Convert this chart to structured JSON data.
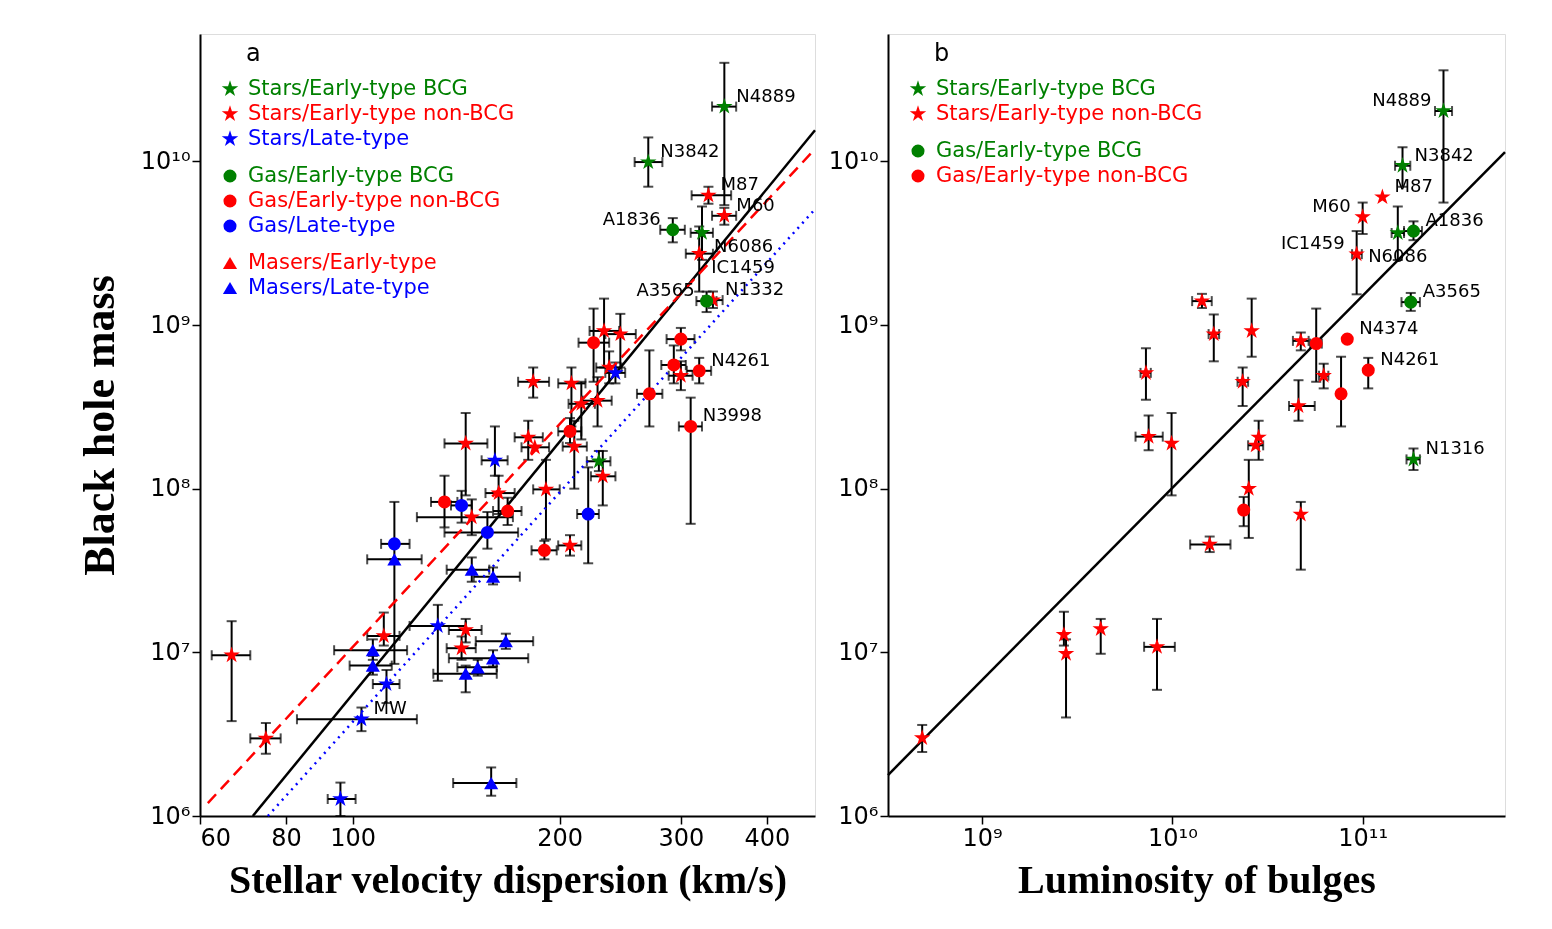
{
  "chart_data": [
    {
      "type": "scatter",
      "xlabel": "Stellar velocity dispersion (km/s)",
      "ylabel": "Black hole mass",
      "log": "xy",
      "grid": false,
      "legend": "top left",
      "xlim": [
        60,
        470
      ],
      "ylim": [
        1000000,
        60000000000
      ],
      "xticks": [
        60,
        80,
        100,
        200,
        300,
        400
      ],
      "yticks": [
        {
          "value": 1000000,
          "label": "10⁶"
        },
        {
          "value": 10000000,
          "label": "10⁷"
        },
        {
          "value": 100000000,
          "label": "10⁸"
        },
        {
          "value": 1000000000,
          "label": "10⁹"
        },
        {
          "value": 10000000000,
          "label": "10¹⁰"
        }
      ],
      "annotations": [
        "a",
        {
          "text": "N4889",
          "x": 347,
          "y": 21600000000.0
        },
        {
          "text": "N3842",
          "x": 269,
          "y": 9900000000.0
        },
        {
          "text": "M87",
          "x": 329,
          "y": 6200000000.0
        },
        {
          "text": "M60",
          "x": 347,
          "y": 4650000000.0
        },
        {
          "text": "A1836",
          "x": 292,
          "y": 3820000000.0
        },
        {
          "text": "N6086",
          "x": 322,
          "y": 3660000000.0
        },
        {
          "text": "IC1459",
          "x": 319,
          "y": 2730000000.0
        },
        {
          "text": "N1332",
          "x": 334,
          "y": 1420000000.0
        },
        {
          "text": "A3565",
          "x": 327,
          "y": 1400000000.0
        },
        {
          "text": "N4261",
          "x": 319,
          "y": 525000000.0
        },
        {
          "text": "N3998",
          "x": 310,
          "y": 240000000.0
        },
        {
          "text": "MW",
          "x": 103,
          "y": 3900000.0
        }
      ],
      "series": [
        {
          "name": "Stars/Early-type BCG",
          "color": "#008000",
          "marker": "star",
          "x": [
            347,
            269,
            322,
            228
          ],
          "values": [
            21600000000.0,
            9900000000.0,
            3660000000.0,
            147000000.0
          ],
          "errors": [
            [
              5400000000.0,
              40000000000.0
            ],
            [
              7000000000.0,
              14000000000.0
            ],
            [
              2500000000.0,
              5300000000.0
            ],
            [
              128000000.0,
              170000000.0
            ]
          ],
          "xerrors": [
            [
              333,
              361
            ],
            [
              257,
              282
            ],
            [
              310,
              334
            ],
            [
              219,
              237
            ]
          ]
        },
        {
          "name": "Stars/Early-type non-BCG",
          "color": "#ff0000",
          "marker": "star",
          "x": [
            329,
            347,
            319,
            334,
            232,
            245,
            236,
            183,
            208,
            215,
            227,
            300,
            146,
            180,
            184,
            210,
            231,
            163,
            191,
            149,
            207,
            66.7,
            74.8,
            111,
            146,
            144
          ],
          "values": [
            6200000000.0,
            4650000000.0,
            2730000000.0,
            1420000000.0,
            920000000.0,
            880000000.0,
            550000000.0,
            450000000.0,
            440000000.0,
            330000000.0,
            345000000.0,
            490000000.0,
            189000000.0,
            206000000.0,
            179000000.0,
            181000000.0,
            119000000.0,
            94000000.0,
            99000000.0,
            67000000.0,
            45000000.0,
            9600000.0,
            2980000.0,
            12600000.0,
            13700000.0,
            10600000.0
          ],
          "errors": [
            [
              5500000000.0,
              7000000000.0
            ],
            [
              4100000000.0,
              5200000000.0
            ],
            [
              1600000000.0,
              4000000000.0
            ],
            [
              1270000000.0,
              1600000000.0
            ],
            [
              550000000.0,
              1450000000.0
            ],
            [
              550000000.0,
              1170000000.0
            ],
            [
              440000000.0,
              690000000.0
            ],
            [
              360000000.0,
              550000000.0
            ],
            [
              240000000.0,
              550000000.0
            ],
            [
              200000000.0,
              450000000.0
            ],
            [
              240000000.0,
              480000000.0
            ],
            [
              400000000.0,
              600000000.0
            ],
            [
              91000000.0,
              290000000.0
            ],
            [
              150000000.0,
              260000000.0
            ],
            null,
            [
              100000000.0,
              260000000.0
            ],
            [
              79000000.0,
              170000000.0
            ],
            [
              70000000.0,
              120000000.0
            ],
            [
              49000000.0,
              150000000.0
            ],
            [
              52000000.0,
              86000000.0
            ],
            [
              39000000.0,
              52000000.0
            ],
            [
              3800000.0,
              15500000.0
            ],
            [
              2400000.0,
              3700000.0
            ],
            [
              11000000.0,
              17500000.0
            ],
            [
              11500000.0,
              16000000.0
            ],
            [
              9000000.0,
              12500000.0
            ]
          ],
          "xerrors": [
            [
              311,
              355
            ],
            [
              333,
              361
            ],
            [
              305,
              334
            ],
            [
              323,
              345
            ],
            [
              221,
              244
            ],
            [
              233,
              258
            ],
            [
              226,
              246
            ],
            [
              174,
              193
            ],
            [
              199,
              218
            ],
            [
              206,
              225
            ],
            [
              216,
              238
            ],
            [
              288,
              312
            ],
            [
              136,
              157
            ],
            [
              172,
              189
            ],
            [
              176,
              193
            ],
            [
              202,
              219
            ],
            [
              222,
              241
            ],
            [
              156,
              172
            ],
            [
              183,
              200
            ],
            [
              124,
              171
            ],
            [
              199,
              215
            ],
            [
              62.4,
              71.0
            ],
            [
              71.0,
              78.6
            ],
            [
              105,
              117
            ],
            [
              138,
              154
            ],
            [
              137,
              151
            ]
          ]
        },
        {
          "name": "Stars/Late-type",
          "color": "#0000ff",
          "marker": "star",
          "x": [
            161,
            133,
            112,
            103,
            96,
            241
          ],
          "values": [
            149000000.0,
            14500000.0,
            6400000.0,
            3900000.0,
            1270000.0,
            510000000.0
          ],
          "errors": [
            [
              120000000.0,
              240000000.0
            ],
            [
              6700000.0,
              19500000.0
            ],
            [
              4900000.0,
              7800000.0
            ],
            [
              3300000.0,
              4600000.0
            ],
            [
              1000000.0,
              1600000.0
            ],
            [
              440000000.0,
              590000000.0
            ]
          ],
          "xerrors": [
            [
              154,
              168
            ],
            [
              121,
              146
            ],
            [
              107,
              117
            ],
            [
              83,
              124
            ],
            [
              92,
              101
            ],
            [
              233,
              249
            ]
          ]
        },
        {
          "name": "Gas/Early-type BCG",
          "color": "#008000",
          "marker": "circle",
          "x": [
            292,
            327
          ],
          "values": [
            3820000000.0,
            1400000000.0
          ],
          "errors": [
            [
              3200000000.0,
              4500000000.0
            ],
            [
              1200000000.0,
              1600000000.0
            ]
          ],
          "xerrors": [
            [
              280,
              304
            ],
            [
              316,
              338
            ]
          ]
        },
        {
          "name": "Gas/Early-type non-BCG",
          "color": "#ff0000",
          "marker": "circle",
          "x": [
            224,
            300,
            293,
            319,
            270,
            310,
            136,
            168,
            207,
            190
          ],
          "values": [
            780000000.0,
            820000000.0,
            570000000.0,
            525000000.0,
            380000000.0,
            240000000.0,
            83000000.0,
            73000000.0,
            224000000.0,
            42000000.0
          ],
          "errors": [
            [
              450000000.0,
              1260000000.0
            ],
            [
              700000000.0,
              960000000.0
            ],
            [
              440000000.0,
              750000000.0
            ],
            [
              440000000.0,
              630000000.0
            ],
            [
              240000000.0,
              700000000.0
            ],
            [
              61000000.0,
              360000000.0
            ],
            [
              58000000.0,
              120000000.0
            ],
            [
              60000000.0,
              88000000.0
            ],
            [
              190000000.0,
              270000000.0
            ],
            [
              37000000.0,
              48000000.0
            ]
          ],
          "xerrors": [
            [
              213,
              236
            ],
            [
              286,
              314
            ],
            [
              281,
              305
            ],
            [
              306,
              332
            ],
            [
              259,
              282
            ],
            [
              298,
              322
            ],
            [
              130,
              142
            ],
            [
              160,
              176
            ],
            [
              199,
              215
            ],
            [
              182,
              198
            ]
          ]
        },
        {
          "name": "Gas/Late-type",
          "color": "#0000ff",
          "marker": "circle",
          "x": [
            144,
            157,
            115,
            220
          ],
          "values": [
            79000000.0,
            54000000.0,
            46000000.0,
            70000000.0
          ],
          "errors": [
            [
              62000000.0,
              97000000.0
            ],
            [
              43000000.0,
              72000000.0
            ],
            [
              37000000.0,
              83000000.0
            ],
            [
              35000000.0,
              135000000.0
            ]
          ],
          "xerrors": [
            [
              139,
              149
            ],
            [
              136,
              174
            ],
            [
              110,
              121
            ],
            [
              212,
              228
            ]
          ]
        },
        {
          "name": "Masers/Early-type",
          "color": "#ff0000",
          "marker": "triangle"
        },
        {
          "name": "Masers/Late-type",
          "color": "#0000ff",
          "marker": "triangle",
          "x": [
            115,
            149,
            160,
            107,
            107,
            167,
            160,
            152,
            146,
            159
          ],
          "values": [
            37000000.0,
            32000000.0,
            29000000.0,
            10300000.0,
            8300000.0,
            11700000.0,
            9200000.0,
            8100000.0,
            7400000.0,
            1590000.0
          ],
          "errors": [
            [
              8500000.0,
              37000000.0
            ],
            [
              27000000.0,
              38000000.0
            ],
            [
              26000000.0,
              33000000.0
            ],
            [
              9000000.0,
              12000000.0
            ],
            [
              7300000.0,
              9500000.0
            ],
            [
              10500000.0,
              13000000.0
            ],
            [
              8200000.0,
              10300000.0
            ],
            [
              7200000.0,
              9000000.0
            ],
            [
              5700000.0,
              8300000.0
            ],
            [
              1330000.0,
              1980000.0
            ]
          ],
          "xerrors": [
            [
              105,
              126
            ],
            [
              137,
              158
            ],
            [
              150,
              175
            ],
            [
              94,
              120
            ],
            [
              99,
              114
            ],
            [
              151,
              183
            ],
            [
              138,
              180
            ],
            [
              142,
              162
            ],
            [
              131,
              162
            ],
            [
              140,
              173
            ]
          ]
        },
        {
          "type": "line",
          "color": "#000000",
          "line_style": "solid",
          "x": [
            71.6,
            470
          ],
          "values": [
            1000000,
            15500000000.0
          ]
        },
        {
          "type": "line",
          "color": "#ff0000",
          "line_style": "dashed",
          "x": [
            61.6,
            470
          ],
          "values": [
            1200000,
            11900000000.0
          ]
        },
        {
          "type": "line",
          "color": "#0000ff",
          "line_style": "dotted",
          "x": [
            75.3,
            470
          ],
          "values": [
            1000000,
            5100000000.0
          ]
        }
      ]
    },
    {
      "type": "scatter",
      "xlabel": "Luminosity of bulges",
      "log": "xy",
      "grid": false,
      "legend": "top left",
      "xlim": [
        320000000,
        560000000000
      ],
      "ylim": [
        1000000,
        60000000000
      ],
      "xticks": [
        {
          "value": 1000000000,
          "label": "10⁹"
        },
        {
          "value": 10000000000,
          "label": "10¹⁰"
        },
        {
          "value": 100000000000,
          "label": "10¹¹"
        }
      ],
      "yticks": [
        {
          "value": 1000000,
          "label": "10⁶"
        },
        {
          "value": 10000000,
          "label": "10⁷"
        },
        {
          "value": 100000000,
          "label": "10⁸"
        },
        {
          "value": 1000000000,
          "label": "10⁹"
        },
        {
          "value": 10000000000,
          "label": "10¹⁰"
        }
      ],
      "annotations": [
        "b",
        {
          "text": "N4889",
          "x": 266000000000.0,
          "y": 20300000000.0
        },
        {
          "text": "N3842",
          "x": 162000000000.0,
          "y": 9400000000.0
        },
        {
          "text": "M87",
          "x": 127000000000.0,
          "y": 6050000000.0
        },
        {
          "text": "M60",
          "x": 100000000000.0,
          "y": 4570000000.0
        },
        {
          "text": "A1836",
          "x": 185000000000.0,
          "y": 3750000000.0
        },
        {
          "text": "N6086",
          "x": 153000000000.0,
          "y": 3650000000.0
        },
        {
          "text": "IC1459",
          "x": 93000000000.0,
          "y": 2710000000.0
        },
        {
          "text": "A3565",
          "x": 179000000000.0,
          "y": 1380000000.0
        },
        {
          "text": "N4374",
          "x": 83000000000.0,
          "y": 820000000.0
        },
        {
          "text": "N4261",
          "x": 107000000000.0,
          "y": 530000000.0
        },
        {
          "text": "N1316",
          "x": 185000000000.0,
          "y": 151000000.0
        }
      ],
      "series": [
        {
          "name": "Stars/Early-type BCG",
          "color": "#008000",
          "marker": "star",
          "x": [
            266000000000.0,
            162000000000.0,
            153000000000.0,
            185000000000.0
          ],
          "values": [
            20300000000.0,
            9400000000.0,
            3650000000.0,
            151000000.0
          ],
          "errors": [
            [
              5600000000.0,
              36000000000.0
            ],
            [
              7000000000.0,
              12200000000.0
            ],
            [
              2500000000.0,
              5300000000.0
            ],
            [
              130000000.0,
              176000000.0
            ]
          ],
          "xerrors": [
            [
              240000000000.0,
              295000000000.0
            ],
            [
              148000000000.0,
              178000000000.0
            ],
            [
              142000000000.0,
              165000000000.0
            ],
            [
              170000000000.0,
              200000000000.0
            ]
          ]
        },
        {
          "name": "Stars/Early-type non-BCG",
          "color": "#ff0000",
          "marker": "star",
          "x": [
            127000000000.0,
            100000000000.0,
            93000000000.0,
            14300000000.0,
            16500000000.0,
            26100000000.0,
            47300000000.0,
            7260000000.0,
            23400000000.0,
            62400000000.0,
            46000000000.0,
            7500000000.0,
            9900000000.0,
            28400000000.0,
            27400000000.0,
            25200000000.0,
            47300000000.0,
            15700000000.0,
            2690000000.0,
            2760000000.0,
            4200000000.0,
            8300000000.0,
            484000000.0
          ],
          "values": [
            6050000000.0,
            4570000000.0,
            2710000000.0,
            1400000000.0,
            880000000.0,
            920000000.0,
            800000000.0,
            510000000.0,
            450000000.0,
            490000000.0,
            320000000.0,
            208000000.0,
            189000000.0,
            206000000.0,
            184000000.0,
            100000000.0,
            69500000.0,
            45600000.0,
            12800000.0,
            9800000.0,
            13900000.0,
            10800000.0,
            3000000.0
          ],
          "errors": [
            null,
            [
              3600000000.0,
              5600000000.0
            ],
            [
              1540000000.0,
              3750000000.0
            ],
            [
              1270000000.0,
              1550000000.0
            ],
            [
              600000000.0,
              1160000000.0
            ],
            [
              640000000.0,
              1450000000.0
            ],
            [
              700000000.0,
              900000000.0
            ],
            [
              350000000.0,
              720000000.0
            ],
            [
              320000000.0,
              550000000.0
            ],
            [
              410000000.0,
              580000000.0
            ],
            [
              260000000.0,
              460000000.0
            ],
            [
              172000000.0,
              280000000.0
            ],
            [
              91000000.0,
              290000000.0
            ],
            [
              150000000.0,
              260000000.0
            ],
            null,
            [
              50000000.0,
              150000000.0
            ],
            [
              32000000.0,
              83000000.0
            ],
            [
              41000000.0,
              51000000.0
            ],
            [
              11000000.0,
              17700000.0
            ],
            [
              4000000.0,
              12000000.0
            ],
            [
              9800000.0,
              16000000.0
            ],
            [
              5900000.0,
              16000000.0
            ],
            [
              2460000.0,
              3600000.0
            ]
          ],
          "xerrors": [
            null,
            null,
            [
              88000000000.0,
              99000000000.0
            ],
            [
              12700000000.0,
              16100000000.0
            ],
            [
              15500000000.0,
              17600000000.0
            ],
            null,
            [
              43000000000.0,
              52000000000.0
            ],
            [
              6800000000.0,
              7700000000.0
            ],
            [
              22000000000.0,
              25000000000.0
            ],
            [
              59000000000.0,
              66000000000.0
            ],
            [
              41000000000.0,
              56000000000.0
            ],
            [
              6400000000.0,
              8900000000.0
            ],
            null,
            null,
            [
              25000000000.0,
              30000000000.0
            ],
            null,
            null,
            [
              12400000000.0,
              20200000000.0
            ],
            null,
            null,
            null,
            [
              7100000000.0,
              10300000000.0
            ],
            null
          ]
        },
        {
          "name": "Gas/Early-type BCG",
          "color": "#008000",
          "marker": "circle",
          "x": [
            185000000000.0,
            179000000000.0
          ],
          "values": [
            3750000000.0,
            1380000000.0
          ],
          "errors": [
            [
              3300000000.0,
              4300000000.0
            ],
            [
              1220000000.0,
              1570000000.0
            ]
          ],
          "xerrors": [
            [
              165000000000.0,
              205000000000.0
            ],
            [
              160000000000.0,
              200000000000.0
            ]
          ]
        },
        {
          "name": "Gas/Early-type non-BCG",
          "color": "#ff0000",
          "marker": "circle",
          "x": [
            83000000000.0,
            107000000000.0,
            57000000000.0,
            77000000000.0,
            23700000000.0
          ],
          "values": [
            820000000.0,
            530000000.0,
            770000000.0,
            380000000.0,
            74000000.0
          ],
          "errors": [
            null,
            [
              410000000.0,
              630000000.0
            ],
            [
              450000000.0,
              1260000000.0
            ],
            [
              240000000.0,
              640000000.0
            ],
            [
              59000000.0,
              89000000.0
            ]
          ],
          "xerrors": [
            null,
            null,
            [
              53000000000.0,
              61000000000.0
            ],
            null,
            null
          ]
        },
        {
          "type": "line",
          "color": "#000000",
          "line_style": "solid",
          "x": [
            320000000,
            560000000000
          ],
          "values": [
            1780000,
            11400000000.0
          ]
        }
      ]
    }
  ]
}
